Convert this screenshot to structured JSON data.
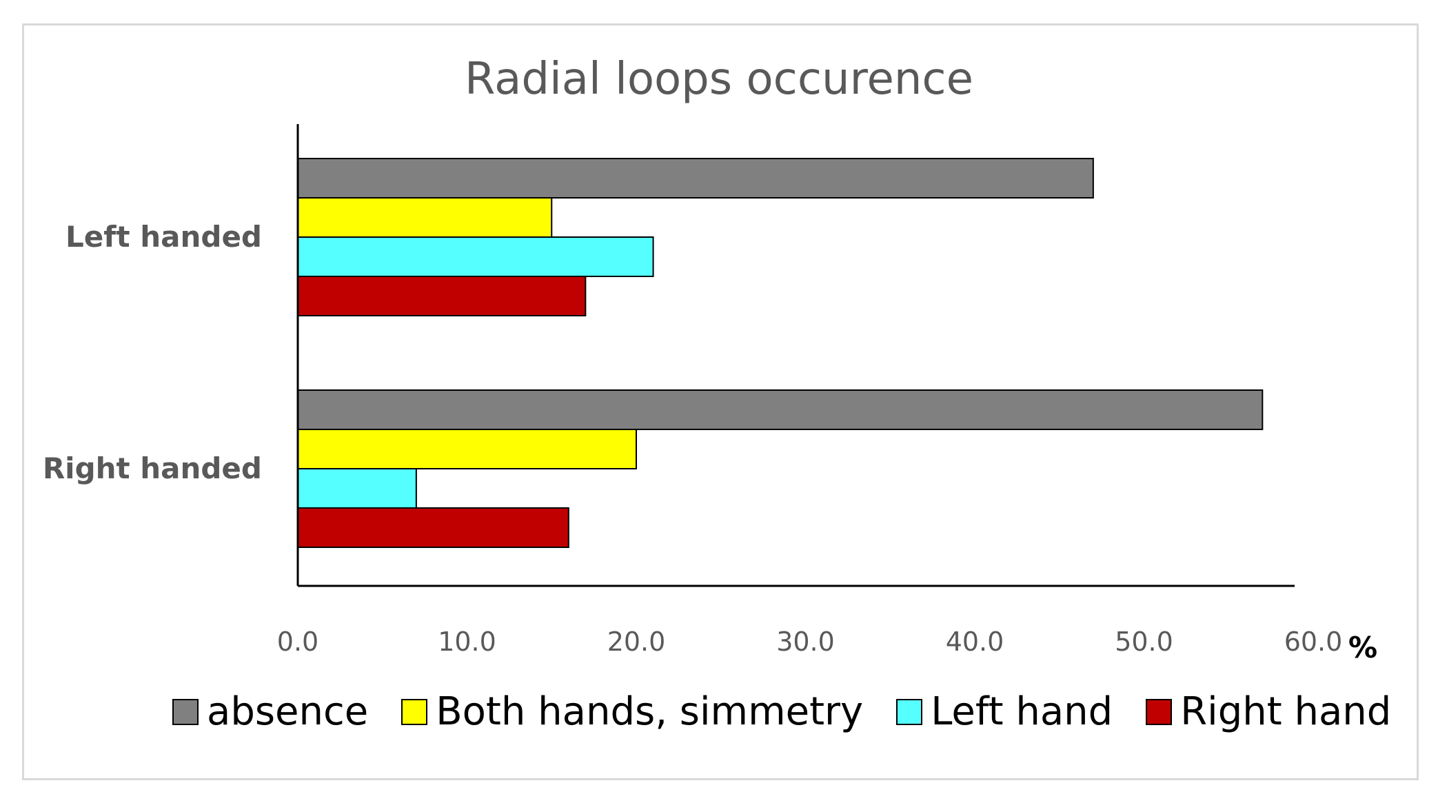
{
  "chart_data": {
    "type": "bar",
    "orientation": "horizontal",
    "title": "Radial loops occurence",
    "categories": [
      "Left handed",
      "Right handed"
    ],
    "series": [
      {
        "name": "absence",
        "color": "#808080",
        "values": [
          47.0,
          57.0
        ]
      },
      {
        "name": "Both hands, simmetry",
        "color": "#ffff00",
        "values": [
          15.0,
          20.0
        ]
      },
      {
        "name": "Left hand",
        "color": "#55ffff",
        "values": [
          21.0,
          7.0
        ]
      },
      {
        "name": "Right hand",
        "color": "#c00000",
        "values": [
          17.0,
          16.0
        ]
      }
    ],
    "xlim": [
      0,
      60
    ],
    "xticks": [
      "0.0",
      "10.0",
      "20.0",
      "30.0",
      "40.0",
      "50.0",
      "60.0"
    ],
    "xunit": "%",
    "xlabel": "",
    "ylabel": "",
    "legend_position": "bottom"
  }
}
